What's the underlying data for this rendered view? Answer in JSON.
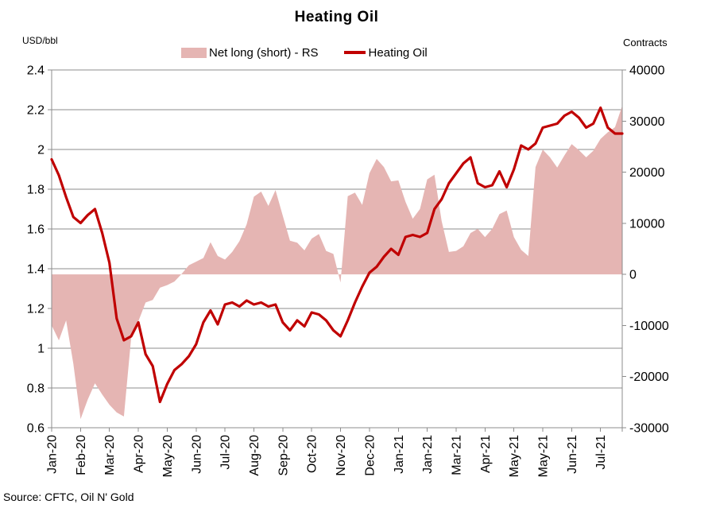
{
  "title": "Heating Oil",
  "source": "Source: CFTC, Oil N' Gold",
  "left_axis_unit": "USD/bbl",
  "right_axis_unit": "Contracts",
  "legend": {
    "area_label": "Net long (short) - RS",
    "line_label": "Heating Oil"
  },
  "colors": {
    "line": "#c00000",
    "area": "#e5b5b3",
    "axis": "#8c8c8c",
    "text": "#000000",
    "background": "#ffffff"
  },
  "chart_data": {
    "type": "combo",
    "title": "Heating Oil",
    "grid": true,
    "legend_position": "top",
    "x_tick_every": 4,
    "x_tick_labels": [
      "Jan-20",
      "Feb-20",
      "Mar-20",
      "Apr-20",
      "May-20",
      "Jun-20",
      "Jul-20",
      "Aug-20",
      "Sep-20",
      "Oct-20",
      "Nov-20",
      "Dec-20",
      "Jan-21",
      "Jan-21",
      "Mar-21",
      "Apr-21",
      "May-21",
      "May-21",
      "Jun-21",
      "Jul-21"
    ],
    "left_axis": {
      "label": "USD/bbl",
      "min": 0.6,
      "max": 2.4,
      "step": 0.2,
      "ticks": [
        "2.4",
        "2.2",
        "2",
        "1.8",
        "1.6",
        "1.4",
        "1.2",
        "1",
        "0.8",
        "0.6"
      ]
    },
    "right_axis": {
      "label": "Contracts",
      "min": -30000,
      "max": 40000,
      "step": 10000,
      "ticks": [
        "40000",
        "30000",
        "20000",
        "10000",
        "0",
        "-10000",
        "-20000",
        "-30000"
      ]
    },
    "series": [
      {
        "name": "Net long (short) - RS",
        "type": "area",
        "axis": "right",
        "color": "#e5b5b3",
        "values": [
          -10000,
          -12900,
          -9000,
          -17500,
          -28300,
          -24500,
          -21300,
          -23500,
          -25500,
          -27000,
          -27800,
          -12500,
          -9200,
          -5500,
          -5000,
          -2600,
          -2100,
          -1400,
          100,
          1800,
          2500,
          3200,
          6300,
          3600,
          2900,
          4400,
          6500,
          9800,
          15200,
          16200,
          13400,
          16500,
          11500,
          6600,
          6200,
          4700,
          7000,
          7900,
          4600,
          4000,
          -1600,
          15300,
          16000,
          13600,
          19800,
          22600,
          21000,
          18200,
          18400,
          14200,
          10900,
          12800,
          18600,
          19500,
          10400,
          4400,
          4600,
          5500,
          8100,
          8900,
          7300,
          8900,
          11800,
          12500,
          7300,
          4800,
          3600,
          21000,
          24400,
          22900,
          20900,
          23300,
          25500,
          24300,
          22900,
          24200,
          26500,
          27800,
          28800,
          33000
        ]
      },
      {
        "name": "Heating Oil",
        "type": "line",
        "axis": "left",
        "color": "#c00000",
        "values": [
          1.95,
          1.87,
          1.76,
          1.66,
          1.63,
          1.67,
          1.7,
          1.58,
          1.43,
          1.15,
          1.04,
          1.06,
          1.13,
          0.97,
          0.91,
          0.73,
          0.82,
          0.89,
          0.92,
          0.96,
          1.02,
          1.13,
          1.19,
          1.12,
          1.22,
          1.23,
          1.21,
          1.24,
          1.22,
          1.23,
          1.21,
          1.22,
          1.13,
          1.09,
          1.14,
          1.11,
          1.18,
          1.17,
          1.14,
          1.09,
          1.06,
          1.14,
          1.23,
          1.31,
          1.38,
          1.41,
          1.46,
          1.5,
          1.47,
          1.56,
          1.57,
          1.56,
          1.58,
          1.7,
          1.75,
          1.83,
          1.88,
          1.93,
          1.96,
          1.83,
          1.81,
          1.82,
          1.89,
          1.81,
          1.9,
          2.02,
          2.0,
          2.03,
          2.11,
          2.12,
          2.13,
          2.17,
          2.19,
          2.16,
          2.11,
          2.13,
          2.21,
          2.11,
          2.08,
          2.08
        ]
      }
    ]
  }
}
